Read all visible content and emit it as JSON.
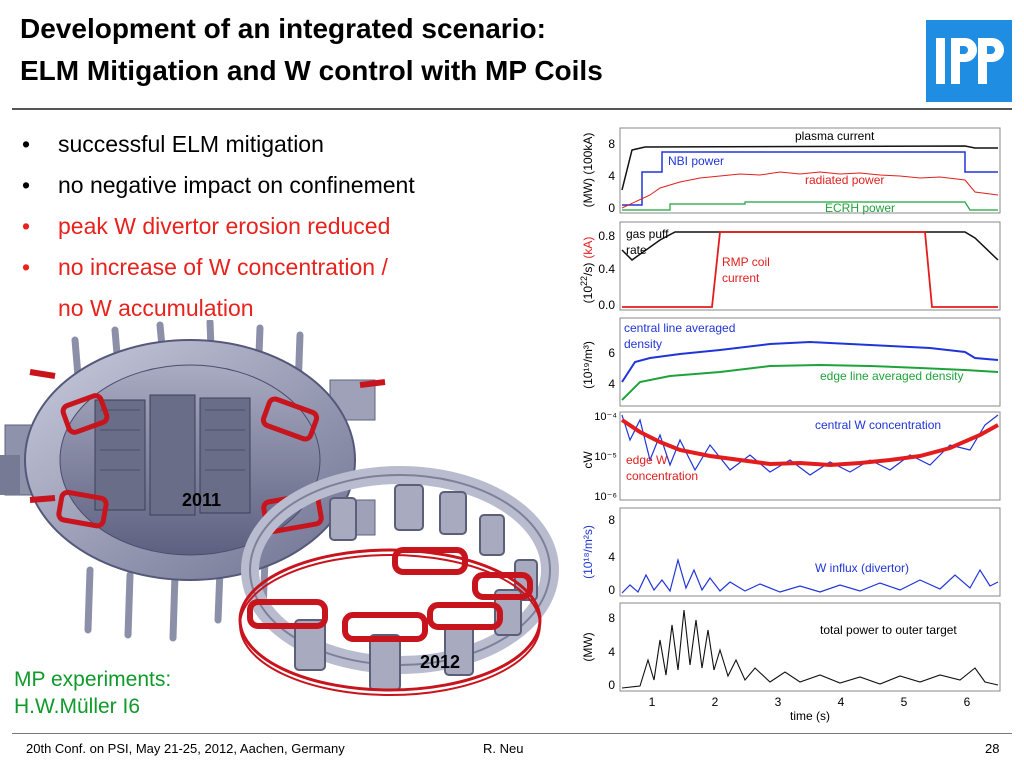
{
  "title": {
    "line1": "Development of an integrated scenario:",
    "line2": "ELM Mitigation and W control with MP Coils"
  },
  "logo": {
    "text": "IPP",
    "color": "#1f8ee2"
  },
  "bullets": [
    {
      "text": "successful ELM mitigation",
      "color": "black"
    },
    {
      "text": "no negative impact on confinement",
      "color": "black"
    },
    {
      "text": "peak W divertor erosion reduced",
      "color": "red"
    },
    {
      "text": "no increase of W concentration /",
      "color": "red"
    },
    {
      "text": "no W accumulation",
      "color": "red",
      "continuation": true
    }
  ],
  "bullet_glyph": "•",
  "illustration": {
    "label_2011": "2011",
    "label_2012": "2012"
  },
  "credit": {
    "line1": "MP experiments:",
    "line2": "H.W.Müller  I6"
  },
  "figure": {
    "xlabel": "time (s)",
    "xticks": [
      "1",
      "2",
      "3",
      "4",
      "5",
      "6"
    ],
    "panels": [
      {
        "ylabel_black": "(MW) (100kA)",
        "yticks": [
          "8",
          "4",
          "0"
        ],
        "labels": [
          "plasma current",
          "NBI power",
          "radiated power",
          "ECRH power"
        ]
      },
      {
        "ylabel_black": "(10",
        "ylabel_sup": "22",
        "ylabel_black2": "/s)",
        "ylabel_red": "(kA)",
        "yticks": [
          "0.8",
          "0.4",
          "0.0"
        ],
        "labels": [
          "gas puff",
          "rate",
          "RMP coil",
          "current"
        ]
      },
      {
        "ylabel": "(10¹⁹/m³)",
        "yticks": [
          "6",
          "4"
        ],
        "labels": [
          "central line averaged",
          "density",
          "edge line averaged density"
        ]
      },
      {
        "ylabel": "cW",
        "yticks": [
          "10⁻⁴",
          "10⁻⁵",
          "10⁻⁶"
        ],
        "labels": [
          "central W concentration",
          "edge W",
          "concentration"
        ]
      },
      {
        "ylabel": "(10¹⁸/m²s)",
        "yticks": [
          "8",
          "4",
          "0"
        ],
        "labels": [
          "W influx (divertor)"
        ]
      },
      {
        "ylabel": "(MW)",
        "yticks": [
          "8",
          "4",
          "0"
        ],
        "labels": [
          "total power to outer target"
        ]
      }
    ]
  },
  "footer": {
    "left": "20th Conf. on  PSI, May 21-25, 2012, Aachen, Germany",
    "center": "R. Neu",
    "right": "28"
  }
}
